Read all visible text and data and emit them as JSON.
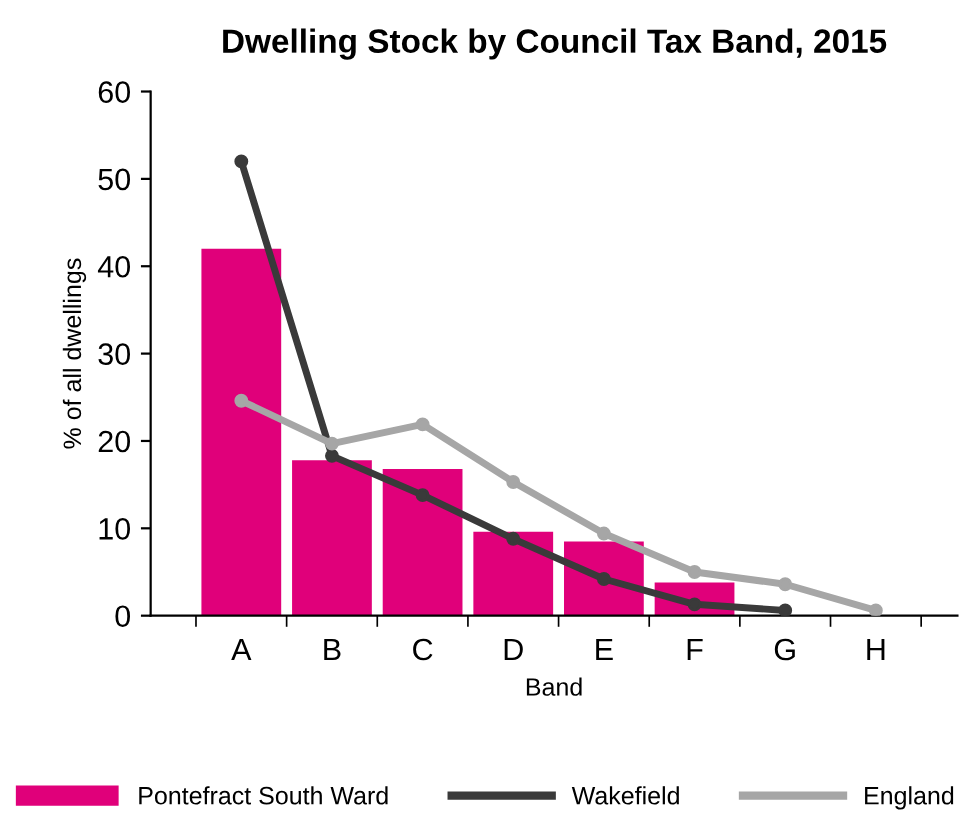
{
  "chart_data": {
    "type": "bar",
    "title": "Dwelling Stock by Council Tax Band, 2015",
    "xlabel": "Band",
    "ylabel": "% of all dwellings",
    "categories": [
      "A",
      "B",
      "C",
      "D",
      "E",
      "F",
      "G",
      "H"
    ],
    "series": [
      {
        "name": "Pontefract South Ward",
        "color": "#e0007a",
        "values": [
          42,
          17.8,
          16.8,
          9.6,
          8.5,
          3.8,
          0,
          0
        ]
      },
      {
        "name": "Wakefield",
        "type": "line",
        "color": "#3a3a3a",
        "values": [
          52,
          18.3,
          13.8,
          8.8,
          4.2,
          1.3,
          0.6,
          null
        ]
      },
      {
        "name": "England",
        "type": "line",
        "color": "#a6a6a6",
        "values": [
          24.6,
          19.7,
          21.9,
          15.3,
          9.4,
          5.0,
          3.6,
          0.6
        ]
      }
    ],
    "ylim": [
      0,
      60
    ],
    "yticks": [
      0,
      10,
      20,
      30,
      40,
      50,
      60
    ],
    "grid": false,
    "legend": "bottom",
    "marker": "circle",
    "line_style": "solid"
  }
}
